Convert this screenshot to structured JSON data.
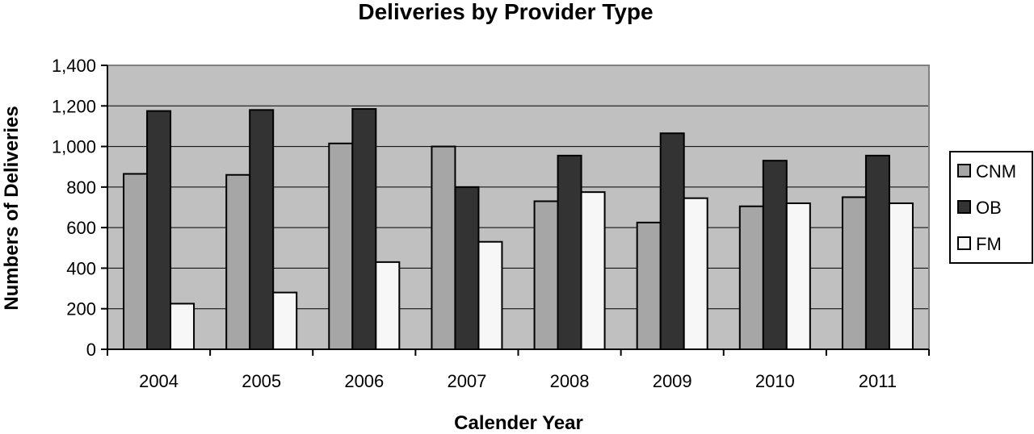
{
  "chart_data": {
    "type": "bar",
    "title": "Deliveries by Provider Type",
    "xlabel": "Calender Year",
    "ylabel": "Numbers of Deliveries",
    "categories": [
      "2004",
      "2005",
      "2006",
      "2007",
      "2008",
      "2009",
      "2010",
      "2011"
    ],
    "series": [
      {
        "name": "CNM",
        "color": "#a6a6a6",
        "values": [
          865,
          860,
          1015,
          1000,
          730,
          625,
          705,
          750
        ]
      },
      {
        "name": "OB",
        "color": "#333333",
        "values": [
          1175,
          1180,
          1185,
          800,
          955,
          1065,
          930,
          955
        ]
      },
      {
        "name": "FM",
        "color": "#f7f7f7",
        "values": [
          225,
          280,
          430,
          530,
          775,
          745,
          720,
          720
        ]
      }
    ],
    "ylim": [
      0,
      1400
    ],
    "yticks": [
      0,
      200,
      400,
      600,
      800,
      1000,
      1200,
      1400
    ],
    "ytick_labels": [
      "0",
      "200",
      "400",
      "600",
      "800",
      "1,000",
      "1,200",
      "1,400"
    ],
    "grid": true,
    "plot_background": "#c0c0c0",
    "legend": "right"
  }
}
